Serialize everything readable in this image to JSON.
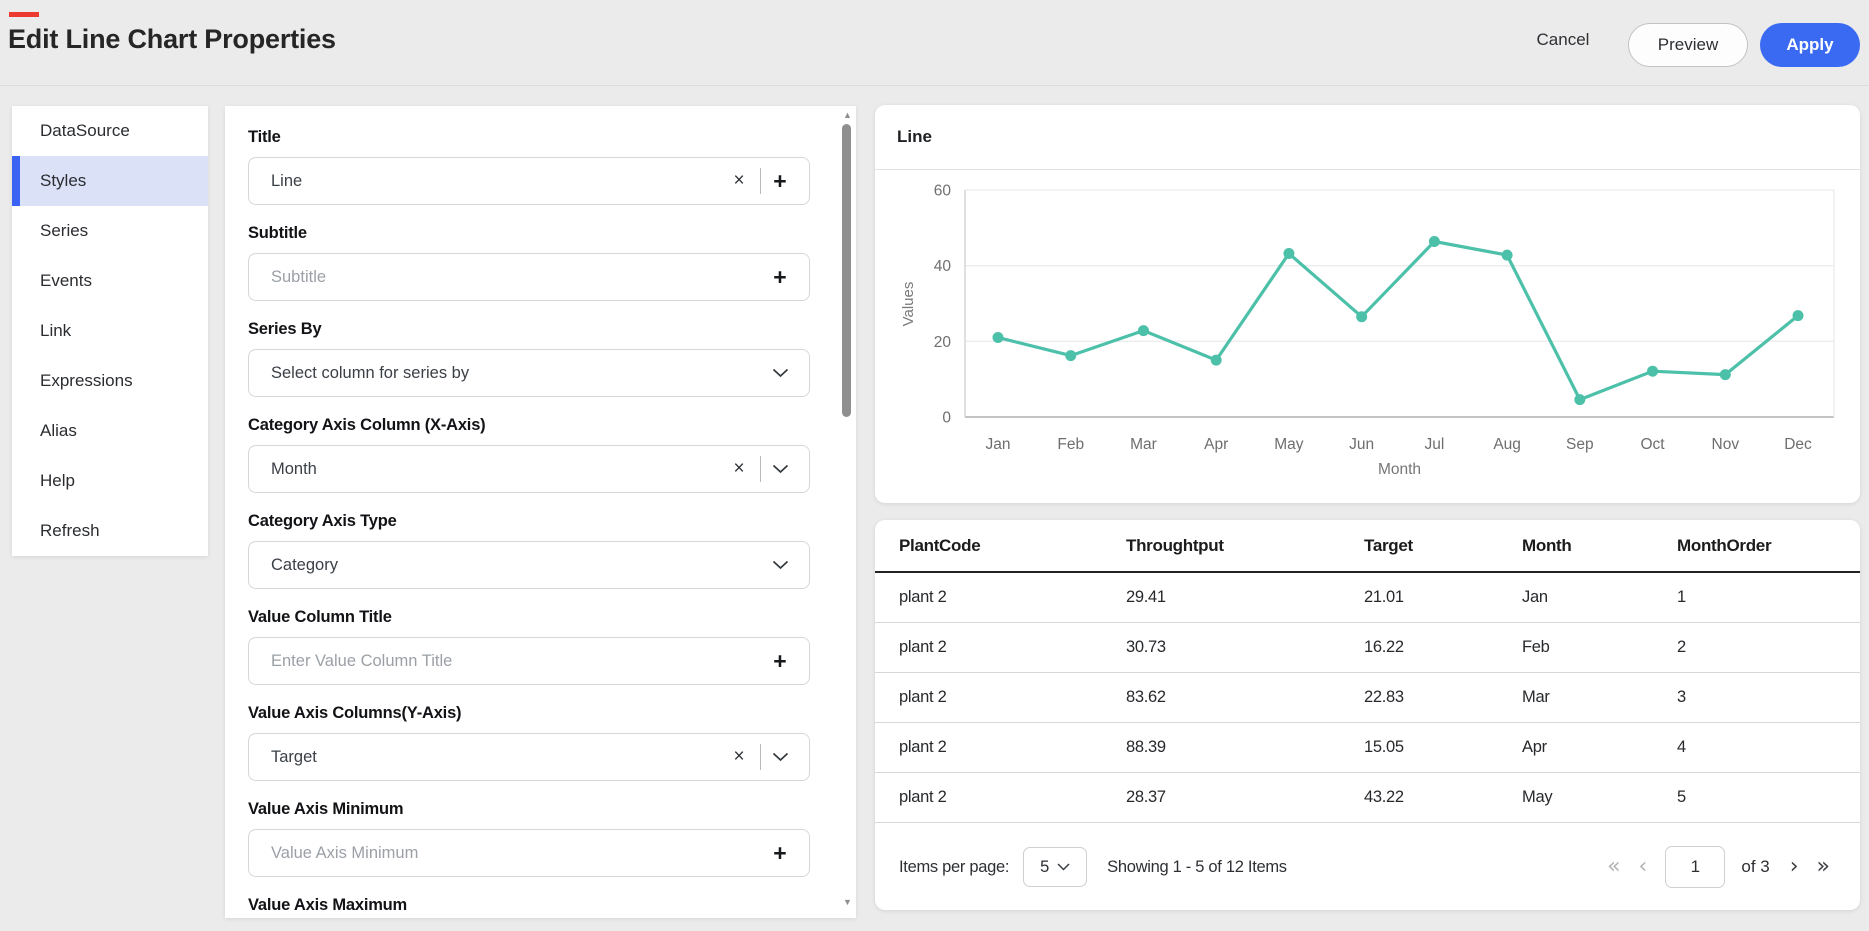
{
  "header": {
    "title": "Edit Line Chart Properties",
    "cancel_label": "Cancel",
    "preview_label": "Preview",
    "apply_label": "Apply",
    "accent_color": "#ed3a30",
    "apply_color": "#3a6af2"
  },
  "sidebar": {
    "items": [
      {
        "label": "DataSource",
        "selected": false
      },
      {
        "label": "Styles",
        "selected": true
      },
      {
        "label": "Series",
        "selected": false
      },
      {
        "label": "Events",
        "selected": false
      },
      {
        "label": "Link",
        "selected": false
      },
      {
        "label": "Expressions",
        "selected": false
      },
      {
        "label": "Alias",
        "selected": false
      },
      {
        "label": "Help",
        "selected": false
      },
      {
        "label": "Refresh",
        "selected": false
      }
    ],
    "selected_bg": "#dbe2f8",
    "selected_bar_color": "#3a63f3"
  },
  "form": {
    "fields": [
      {
        "label": "Title",
        "type": "text",
        "value": "Line",
        "placeholder": "",
        "controls": [
          "clear",
          "add"
        ]
      },
      {
        "label": "Subtitle",
        "type": "text",
        "value": "",
        "placeholder": "Subtitle",
        "controls": [
          "add"
        ]
      },
      {
        "label": "Series By",
        "type": "select",
        "value": "Select column for series by",
        "placeholder": "",
        "controls": [
          "chevron"
        ]
      },
      {
        "label": "Category Axis Column (X-Axis)",
        "type": "select",
        "value": "Month",
        "placeholder": "",
        "controls": [
          "clear",
          "chevron"
        ]
      },
      {
        "label": "Category Axis Type",
        "type": "select",
        "value": "Category",
        "placeholder": "",
        "controls": [
          "chevron"
        ]
      },
      {
        "label": "Value Column Title",
        "type": "text",
        "value": "",
        "placeholder": "Enter Value Column Title",
        "controls": [
          "add"
        ]
      },
      {
        "label": "Value Axis Columns(Y-Axis)",
        "type": "select",
        "value": "Target",
        "placeholder": "",
        "controls": [
          "clear",
          "chevron"
        ]
      },
      {
        "label": "Value Axis Minimum",
        "type": "text",
        "value": "",
        "placeholder": "Value Axis Minimum",
        "controls": [
          "add"
        ]
      },
      {
        "label": "Value Axis Maximum",
        "type": "text",
        "value": "",
        "placeholder": "",
        "controls": []
      }
    ]
  },
  "icons": {
    "clear": "×",
    "add": "+"
  },
  "chart_panel": {
    "title": "Line"
  },
  "chart_data": {
    "type": "line",
    "title": "Line",
    "categories": [
      "Jan",
      "Feb",
      "Mar",
      "Apr",
      "May",
      "Jun",
      "Jul",
      "Aug",
      "Sep",
      "Oct",
      "Nov",
      "Dec"
    ],
    "series": [
      {
        "name": "Target",
        "values": [
          21.01,
          16.22,
          22.83,
          15.05,
          43.22,
          26.5,
          46.4,
          42.8,
          4.6,
          12.1,
          11.2,
          26.8
        ]
      }
    ],
    "xlabel": "Month",
    "ylabel": "Values",
    "ylim": [
      0,
      60
    ],
    "yticks": [
      0,
      20,
      40,
      60
    ],
    "grid": true,
    "legend": false,
    "line_color": "#4cc0a9"
  },
  "table": {
    "columns": [
      "PlantCode",
      "Throughtput",
      "Target",
      "Month",
      "MonthOrder"
    ],
    "rows": [
      [
        "plant 2",
        "29.41",
        "21.01",
        "Jan",
        "1"
      ],
      [
        "plant 2",
        "30.73",
        "16.22",
        "Feb",
        "2"
      ],
      [
        "plant 2",
        "83.62",
        "22.83",
        "Mar",
        "3"
      ],
      [
        "plant 2",
        "88.39",
        "15.05",
        "Apr",
        "4"
      ],
      [
        "plant 2",
        "28.37",
        "43.22",
        "May",
        "5"
      ]
    ]
  },
  "pagination": {
    "items_per_page_label": "Items per page:",
    "items_per_page_value": "5",
    "showing_text": "Showing 1 - 5 of 12 Items",
    "page_value": "1",
    "of_text": "of 3",
    "first_icon": "«",
    "prev_icon": "‹",
    "next_icon": "›",
    "last_icon": "»"
  }
}
